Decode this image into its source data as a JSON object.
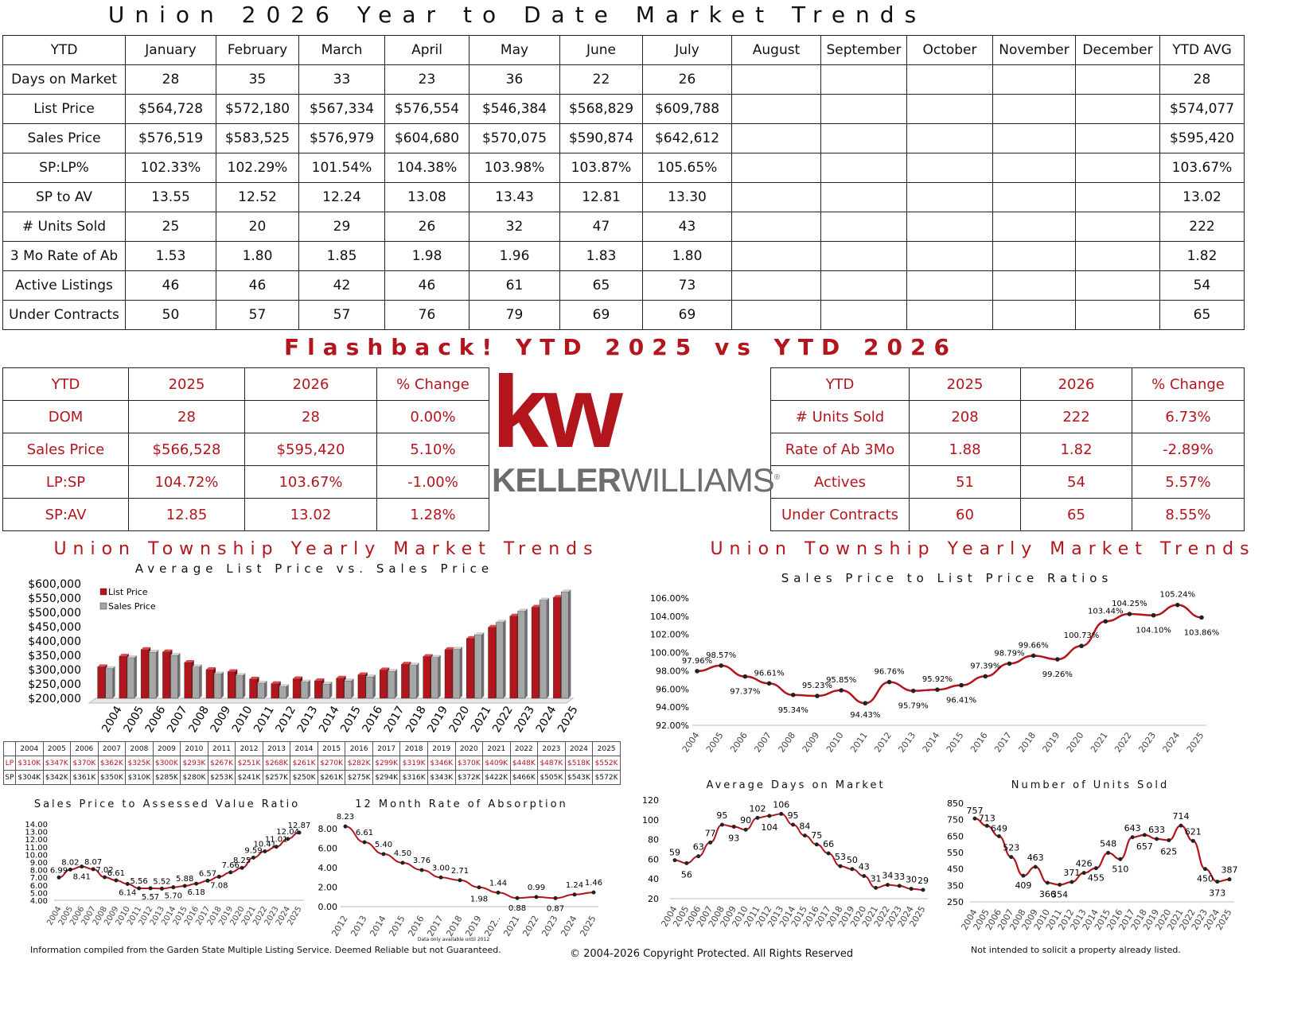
{
  "title": "Union 2026 Year to Date Market Trends",
  "main_table": {
    "headers": [
      "YTD",
      "January",
      "February",
      "March",
      "April",
      "May",
      "June",
      "July",
      "August",
      "September",
      "October",
      "November",
      "December",
      "YTD AVG"
    ],
    "rows": [
      [
        "Days on Market",
        "28",
        "35",
        "33",
        "23",
        "36",
        "22",
        "26",
        "",
        "",
        "",
        "",
        "",
        "28"
      ],
      [
        "List Price",
        "$564,728",
        "$572,180",
        "$567,334",
        "$576,554",
        "$546,384",
        "$568,829",
        "$609,788",
        "",
        "",
        "",
        "",
        "",
        "$574,077"
      ],
      [
        "Sales Price",
        "$576,519",
        "$583,525",
        "$576,979",
        "$604,680",
        "$570,075",
        "$590,874",
        "$642,612",
        "",
        "",
        "",
        "",
        "",
        "$595,420"
      ],
      [
        "SP:LP%",
        "102.33%",
        "102.29%",
        "101.54%",
        "104.38%",
        "103.98%",
        "103.87%",
        "105.65%",
        "",
        "",
        "",
        "",
        "",
        "103.67%"
      ],
      [
        "SP to AV",
        "13.55",
        "12.52",
        "12.24",
        "13.08",
        "13.43",
        "12.81",
        "13.30",
        "",
        "",
        "",
        "",
        "",
        "13.02"
      ],
      [
        "# Units Sold",
        "25",
        "20",
        "29",
        "26",
        "32",
        "47",
        "43",
        "",
        "",
        "",
        "",
        "",
        "222"
      ],
      [
        "3 Mo Rate of Ab",
        "1.53",
        "1.80",
        "1.85",
        "1.98",
        "1.96",
        "1.83",
        "1.80",
        "",
        "",
        "",
        "",
        "",
        "1.82"
      ],
      [
        "Active Listings",
        "46",
        "46",
        "42",
        "46",
        "61",
        "65",
        "73",
        "",
        "",
        "",
        "",
        "",
        "54"
      ],
      [
        "Under Contracts",
        "50",
        "57",
        "57",
        "76",
        "79",
        "69",
        "69",
        "",
        "",
        "",
        "",
        "",
        "65"
      ]
    ]
  },
  "flashback_title": "Flashback!  YTD 2025 vs YTD 2026",
  "flashback_left": {
    "headers": [
      "YTD",
      "2025",
      "2026",
      "% Change"
    ],
    "rows": [
      [
        "DOM",
        "28",
        "28",
        "0.00%"
      ],
      [
        "Sales Price",
        "$566,528",
        "$595,420",
        "5.10%"
      ],
      [
        "LP:SP",
        "104.72%",
        "103.67%",
        "-1.00%"
      ],
      [
        "SP:AV",
        "12.85",
        "13.02",
        "1.28%"
      ]
    ]
  },
  "flashback_right": {
    "headers": [
      "YTD",
      "2025",
      "2026",
      "% Change"
    ],
    "rows": [
      [
        "# Units Sold",
        "208",
        "222",
        "6.73%"
      ],
      [
        "Rate of Ab 3Mo",
        "1.88",
        "1.82",
        "-2.89%"
      ],
      [
        "Actives",
        "51",
        "54",
        "5.57%"
      ],
      [
        "Under Contracts",
        "60",
        "65",
        "8.55%"
      ]
    ]
  },
  "logo": {
    "kw": "kw",
    "brand_a": "KELLER",
    "brand_b": "WILLIAMS",
    "mark": "®"
  },
  "colors": {
    "accent": "#b3151d",
    "gray": "#a6a6a6",
    "dark": "#7a1010"
  },
  "left_header": {
    "title": "Union Township Yearly Market Trends",
    "subtitle": "Average List Price vs. Sales Price"
  },
  "right_header": {
    "title": "Union Township Yearly Market Trends",
    "subtitle": "Sales Price to List Price Ratios"
  },
  "year_table": {
    "years": [
      "2004",
      "2005",
      "2006",
      "2007",
      "2008",
      "2009",
      "2010",
      "2011",
      "2012",
      "2013",
      "2014",
      "2015",
      "2016",
      "2017",
      "2018",
      "2019",
      "2020",
      "2021",
      "2022",
      "2023",
      "2024",
      "2025"
    ],
    "lp_label": "LP",
    "sp_label": "SP",
    "lp": [
      "$310K",
      "$347K",
      "$370K",
      "$362K",
      "$325K",
      "$300K",
      "$293K",
      "$267K",
      "$251K",
      "$268K",
      "$261K",
      "$270K",
      "$282K",
      "$299K",
      "$319K",
      "$346K",
      "$370K",
      "$409K",
      "$448K",
      "$487K",
      "$518K",
      "$552K"
    ],
    "sp": [
      "$304K",
      "$342K",
      "$361K",
      "$350K",
      "$310K",
      "$285K",
      "$280K",
      "$253K",
      "$241K",
      "$257K",
      "$250K",
      "$261K",
      "$275K",
      "$294K",
      "$316K",
      "$343K",
      "$372K",
      "$422K",
      "$466K",
      "$505K",
      "$543K",
      "$572K"
    ]
  },
  "chart_data": [
    {
      "id": "price",
      "type": "bar",
      "title": "Union Township Yearly Market Trends",
      "subtitle": "Average List Price vs. Sales Price",
      "categories": [
        "2004",
        "2005",
        "2006",
        "2007",
        "2008",
        "2009",
        "2010",
        "2011",
        "2012",
        "2013",
        "2014",
        "2015",
        "2016",
        "2017",
        "2018",
        "2019",
        "2020",
        "2021",
        "2022",
        "2023",
        "2024",
        "2025"
      ],
      "series": [
        {
          "name": "List Price",
          "values": [
            310000,
            347000,
            370000,
            362000,
            325000,
            300000,
            293000,
            267000,
            251000,
            268000,
            261000,
            270000,
            282000,
            299000,
            319000,
            346000,
            370000,
            409000,
            448000,
            487000,
            518000,
            552000
          ]
        },
        {
          "name": "Sales Price",
          "values": [
            304000,
            342000,
            361000,
            350000,
            310000,
            285000,
            280000,
            253000,
            241000,
            257000,
            250000,
            261000,
            275000,
            294000,
            316000,
            343000,
            372000,
            422000,
            466000,
            505000,
            543000,
            572000
          ]
        }
      ],
      "ylim": [
        200000,
        600000
      ],
      "yticks": [
        "$200,000",
        "$250,000",
        "$300,000",
        "$350,000",
        "$400,000",
        "$450,000",
        "$500,000",
        "$550,000",
        "$600,000"
      ],
      "legend": "top-left"
    },
    {
      "id": "splp",
      "type": "line",
      "title": "Sales Price to List Price Ratios",
      "categories": [
        "2004",
        "2005",
        "2006",
        "2007",
        "2008",
        "2009",
        "2010",
        "2011",
        "2012",
        "2013",
        "2014",
        "2015",
        "2016",
        "2017",
        "2018",
        "2019",
        "2020",
        "2021",
        "2022",
        "2023",
        "2024",
        "2025"
      ],
      "values": [
        97.96,
        98.57,
        97.37,
        96.61,
        95.34,
        95.23,
        95.85,
        94.43,
        96.76,
        95.79,
        95.92,
        96.41,
        97.39,
        98.79,
        99.66,
        99.26,
        100.73,
        103.44,
        104.25,
        104.1,
        105.24,
        103.86
      ],
      "labels": [
        "97.96%",
        "98.57%",
        "97.37%",
        "96.61%",
        "95.34%",
        "95.23%",
        "95.85%",
        "94.43%",
        "96.76%",
        "95.79%",
        "95.92%",
        "96.41%",
        "97.39%",
        "98.79%",
        "99.66%",
        "99.26%",
        "100.73%",
        "103.44%",
        "104.25%",
        "104.10%",
        "105.24%",
        "103.86%"
      ],
      "ylim": [
        92,
        106
      ],
      "yticks": [
        "92.00%",
        "94.00%",
        "96.00%",
        "98.00%",
        "100.00%",
        "102.00%",
        "104.00%",
        "106.00%"
      ]
    },
    {
      "id": "spav",
      "type": "line",
      "title": "Sales Price to Assessed Value Ratio",
      "categories": [
        "2004",
        "2005",
        "2006",
        "2007",
        "2008",
        "2009",
        "2010",
        "2011",
        "2012",
        "2013",
        "2014",
        "2015",
        "2016",
        "2017",
        "2018",
        "2019",
        "2020",
        "2021",
        "2022",
        "2023",
        "2024",
        "2025"
      ],
      "values": [
        6.99,
        8.02,
        8.41,
        8.07,
        7.02,
        6.61,
        6.14,
        5.56,
        5.57,
        5.52,
        5.7,
        5.88,
        6.18,
        6.57,
        7.08,
        7.66,
        8.25,
        9.59,
        10.41,
        11.01,
        12.04,
        12.87
      ],
      "labels": [
        "6.99",
        "8.02",
        "8.41",
        "8.07",
        "7.02",
        "6.61",
        "6.14",
        "5.56",
        "5.57",
        "5.52",
        "5.70",
        "5.88",
        "6.18",
        "6.57",
        "7.08",
        "7.66",
        "8.25",
        "9.59",
        "10.41",
        "11.01",
        "12.04",
        "12.87"
      ],
      "ylim": [
        4,
        14
      ],
      "yticks": [
        "4.00",
        "5.00",
        "6.00",
        "7.00",
        "8.00",
        "9.00",
        "10.00",
        "11.00",
        "12.00",
        "13.00",
        "14.00"
      ]
    },
    {
      "id": "absorption",
      "type": "line",
      "title": "12 Month Rate of Absorption",
      "categories": [
        "2012",
        "2013",
        "2014",
        "2015",
        "2016",
        "2017",
        "2018",
        "2019",
        "202..",
        "2021",
        "2022",
        "2023",
        "2024",
        "2025"
      ],
      "values": [
        8.23,
        6.61,
        5.4,
        4.5,
        3.76,
        3.0,
        2.71,
        1.98,
        1.44,
        0.88,
        0.99,
        0.87,
        1.24,
        1.46
      ],
      "labels": [
        "8.23",
        "6.61",
        "5.40",
        "4.50",
        "3.76",
        "3.00",
        "2.71",
        "1.98",
        "1.44",
        "0.88",
        "0.99",
        "0.87",
        "1.24",
        "1.46"
      ],
      "ylim": [
        0,
        8
      ],
      "yticks": [
        "0.00",
        "2.00",
        "4.00",
        "6.00",
        "8.00"
      ],
      "note": "Data only available until 2012"
    },
    {
      "id": "dom",
      "type": "line",
      "title": "Average Days on Market",
      "categories": [
        "2004",
        "2005",
        "2006",
        "2007",
        "2008",
        "2009",
        "2010",
        "2011",
        "2012",
        "2013",
        "2014",
        "2015",
        "2016",
        "2017",
        "2018",
        "2019",
        "2020",
        "2021",
        "2022",
        "2023",
        "2024",
        "2025"
      ],
      "values": [
        59,
        56,
        63,
        77,
        95,
        93,
        90,
        102,
        104,
        106,
        95,
        84,
        75,
        66,
        53,
        50,
        43,
        31,
        34,
        33,
        30,
        29
      ],
      "labels": [
        "59",
        "56",
        "63",
        "77",
        "95",
        "93",
        "90",
        "102",
        "104",
        "106",
        "95",
        "84",
        "75",
        "66",
        "53",
        "50",
        "43",
        "31",
        "34",
        "33",
        "30",
        "29"
      ],
      "ylim": [
        20,
        120
      ],
      "yticks": [
        "20",
        "40",
        "60",
        "80",
        "100",
        "120"
      ]
    },
    {
      "id": "units",
      "type": "line",
      "title": "Number of Units Sold",
      "categories": [
        "2004",
        "2005",
        "2006",
        "2007",
        "2008",
        "2009",
        "2010",
        "2011",
        "2012",
        "2013",
        "2014",
        "2015",
        "2016",
        "2017",
        "2018",
        "2019",
        "2020",
        "2021",
        "2022",
        "2023",
        "2024",
        "2025"
      ],
      "values": [
        757,
        713,
        649,
        523,
        409,
        463,
        366,
        354,
        371,
        426,
        455,
        548,
        510,
        643,
        657,
        633,
        625,
        714,
        621,
        450,
        373,
        387
      ],
      "labels": [
        "757",
        "713",
        "649",
        "523",
        "409",
        "463",
        "366",
        "354",
        "371",
        "426",
        "455",
        "548",
        "510",
        "643",
        "657",
        "633",
        "625",
        "714",
        "621",
        "450",
        "373",
        "387"
      ],
      "ylim": [
        250,
        850
      ],
      "yticks": [
        "250",
        "350",
        "450",
        "550",
        "650",
        "750",
        "850"
      ]
    }
  ],
  "footer": {
    "left": "Information compiled from the Garden State Multiple Listing Service.  Deemed Reliable but not Guaranteed.",
    "center": "© 2004-2026 Copyright Protected.  All Rights Reserved",
    "right": "Not intended to solicit a property already listed."
  }
}
